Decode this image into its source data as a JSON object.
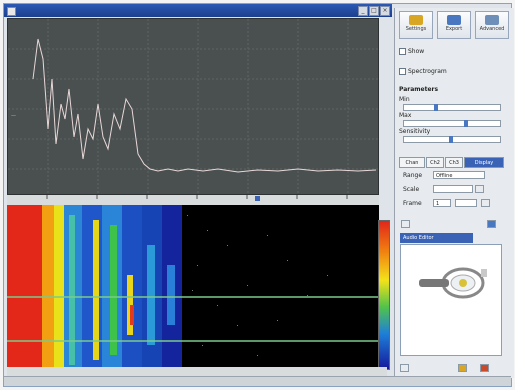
{
  "title": "",
  "panel": {
    "toolbar": [
      {
        "label": "Settings",
        "color": "#d9a623"
      },
      {
        "label": "Export",
        "color": "#4a78c0"
      },
      {
        "label": "Advanced",
        "color": "#6e8fb8"
      }
    ],
    "option_top": "Show",
    "option_second": "Spectrogram",
    "section_label": "Parameters",
    "row1_label": "Min",
    "row2_label": "Max",
    "row3_label": "Sensitivity",
    "tabs": [
      "Chan",
      "Ch2",
      "Ch3",
      "Display"
    ],
    "field1_label": "Range",
    "field1_value": "Offline",
    "field2_label": "Scale",
    "field3_label": "Frame",
    "field3_value": "1",
    "preview_title": "Audio Editor"
  },
  "colors": {
    "accent": "#3b63b5",
    "wave_bg": "#4a4f50",
    "trace": "#e8d8d8"
  }
}
